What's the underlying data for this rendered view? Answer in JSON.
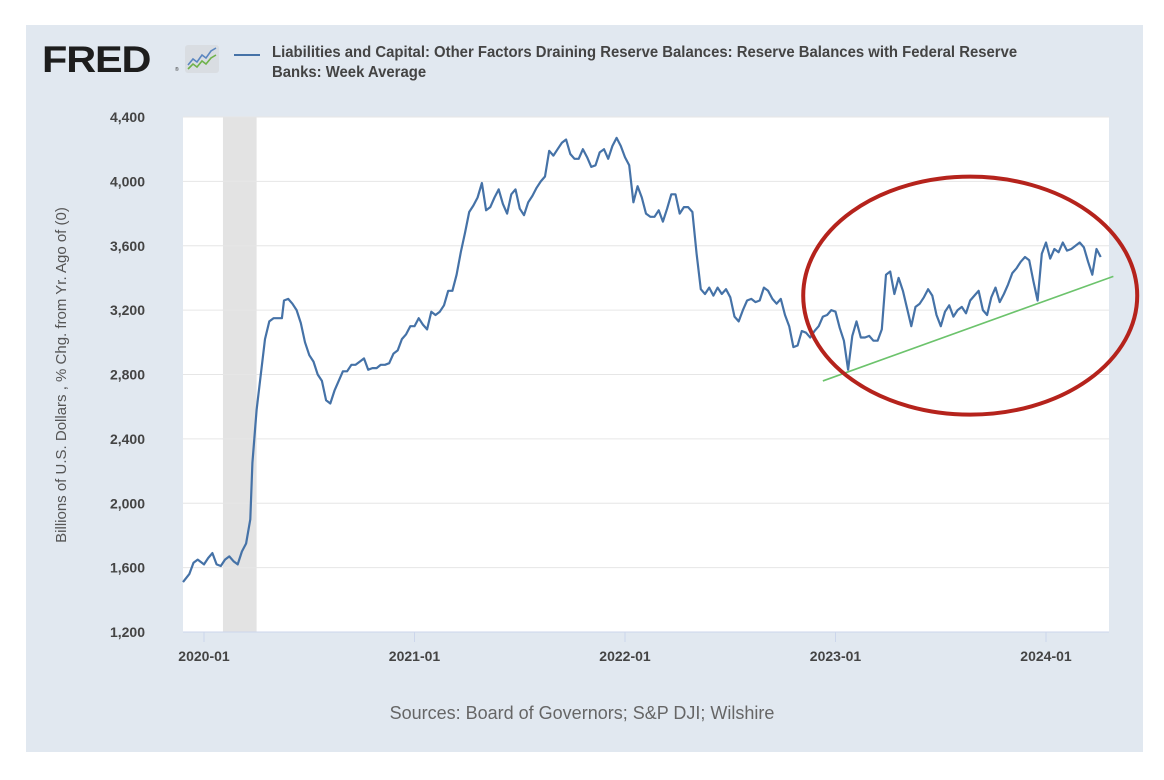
{
  "logo": {
    "text": "FRED",
    "reg_mark": "®",
    "icon": "fred-chart-icon"
  },
  "legend": {
    "series_color": "#4572a7"
  },
  "sources_text": "Sources: Board of Governors; S&P DJI; Wilshire",
  "chart_data": {
    "type": "line",
    "title": "Liabilities and Capital: Other Factors Draining Reserve Balances: Reserve Balances with Federal Reserve Banks: Week Average",
    "xlabel": "",
    "ylabel": "Billions of U.S. Dollars , % Chg. from Yr. Ago of (0)",
    "ylim": [
      1200,
      4400
    ],
    "yticks": [
      1200,
      1600,
      2000,
      2400,
      2800,
      3200,
      3600,
      4000,
      4400
    ],
    "ytick_labels": [
      "1,200",
      "1,600",
      "2,000",
      "2,400",
      "2,800",
      "3,200",
      "3,600",
      "4,000",
      "4,400"
    ],
    "xlim": [
      2019.9,
      2024.3
    ],
    "xticks": [
      2020.0,
      2021.0,
      2022.0,
      2023.0,
      2024.0
    ],
    "xtick_labels": [
      "2020-01",
      "2021-01",
      "2022-01",
      "2023-01",
      "2024-01"
    ],
    "grid": true,
    "legend_position": "top",
    "recession_shading": [
      [
        2020.09,
        2020.25
      ]
    ],
    "series": [
      {
        "name": "Reserve Balances with Federal Reserve Banks: Week Average",
        "color": "#4572a7",
        "x": [
          2019.9,
          2019.93,
          2019.95,
          2019.97,
          2020.0,
          2020.02,
          2020.04,
          2020.06,
          2020.08,
          2020.1,
          2020.12,
          2020.14,
          2020.16,
          2020.18,
          2020.2,
          2020.22,
          2020.23,
          2020.25,
          2020.27,
          2020.29,
          2020.31,
          2020.33,
          2020.35,
          2020.37,
          2020.38,
          2020.4,
          2020.42,
          2020.44,
          2020.46,
          2020.48,
          2020.5,
          2020.52,
          2020.54,
          2020.56,
          2020.58,
          2020.6,
          2020.62,
          2020.64,
          2020.66,
          2020.68,
          2020.7,
          2020.72,
          2020.74,
          2020.76,
          2020.78,
          2020.8,
          2020.82,
          2020.84,
          2020.86,
          2020.88,
          2020.9,
          2020.92,
          2020.94,
          2020.96,
          2020.98,
          2021.0,
          2021.02,
          2021.04,
          2021.06,
          2021.08,
          2021.1,
          2021.12,
          2021.14,
          2021.16,
          2021.18,
          2021.2,
          2021.22,
          2021.24,
          2021.26,
          2021.28,
          2021.3,
          2021.32,
          2021.34,
          2021.36,
          2021.38,
          2021.4,
          2021.42,
          2021.44,
          2021.46,
          2021.48,
          2021.5,
          2021.52,
          2021.54,
          2021.56,
          2021.58,
          2021.6,
          2021.62,
          2021.64,
          2021.66,
          2021.68,
          2021.7,
          2021.72,
          2021.74,
          2021.76,
          2021.78,
          2021.8,
          2021.82,
          2021.84,
          2021.86,
          2021.88,
          2021.9,
          2021.92,
          2021.94,
          2021.96,
          2021.98,
          2022.0,
          2022.02,
          2022.04,
          2022.06,
          2022.08,
          2022.1,
          2022.12,
          2022.14,
          2022.16,
          2022.18,
          2022.2,
          2022.22,
          2022.24,
          2022.26,
          2022.28,
          2022.3,
          2022.32,
          2022.34,
          2022.36,
          2022.38,
          2022.4,
          2022.42,
          2022.44,
          2022.46,
          2022.48,
          2022.5,
          2022.52,
          2022.54,
          2022.56,
          2022.58,
          2022.6,
          2022.62,
          2022.64,
          2022.66,
          2022.68,
          2022.7,
          2022.72,
          2022.74,
          2022.76,
          2022.78,
          2022.8,
          2022.82,
          2022.84,
          2022.86,
          2022.88,
          2022.9,
          2022.92,
          2022.94,
          2022.96,
          2022.98,
          2023.0,
          2023.02,
          2023.04,
          2023.06,
          2023.08,
          2023.1,
          2023.12,
          2023.14,
          2023.16,
          2023.18,
          2023.2,
          2023.22,
          2023.24,
          2023.26,
          2023.28,
          2023.3,
          2023.32,
          2023.34,
          2023.36,
          2023.38,
          2023.4,
          2023.42,
          2023.44,
          2023.46,
          2023.48,
          2023.5,
          2023.52,
          2023.54,
          2023.56,
          2023.58,
          2023.6,
          2023.62,
          2023.64,
          2023.66,
          2023.68,
          2023.7,
          2023.72,
          2023.74,
          2023.76,
          2023.78,
          2023.8,
          2023.82,
          2023.84,
          2023.86,
          2023.88,
          2023.9,
          2023.92,
          2023.94,
          2023.96,
          2023.98,
          2024.0,
          2024.02,
          2024.04,
          2024.06,
          2024.08,
          2024.1,
          2024.12,
          2024.14,
          2024.16,
          2024.18,
          2024.2,
          2024.22,
          2024.24,
          2024.26
        ],
        "values": [
          1510,
          1560,
          1630,
          1650,
          1620,
          1660,
          1690,
          1620,
          1610,
          1650,
          1670,
          1640,
          1620,
          1700,
          1750,
          1900,
          2250,
          2580,
          2800,
          3020,
          3130,
          3150,
          3150,
          3150,
          3260,
          3270,
          3240,
          3200,
          3120,
          3000,
          2920,
          2880,
          2800,
          2760,
          2640,
          2620,
          2700,
          2760,
          2820,
          2820,
          2860,
          2860,
          2880,
          2900,
          2830,
          2840,
          2840,
          2860,
          2860,
          2870,
          2930,
          2950,
          3020,
          3050,
          3100,
          3100,
          3150,
          3110,
          3080,
          3190,
          3170,
          3190,
          3230,
          3320,
          3320,
          3420,
          3560,
          3680,
          3810,
          3850,
          3900,
          3990,
          3820,
          3840,
          3900,
          3950,
          3860,
          3800,
          3920,
          3950,
          3830,
          3790,
          3870,
          3910,
          3960,
          4000,
          4030,
          4190,
          4160,
          4200,
          4240,
          4260,
          4170,
          4140,
          4140,
          4200,
          4150,
          4090,
          4100,
          4180,
          4200,
          4140,
          4220,
          4270,
          4220,
          4150,
          4100,
          3870,
          3970,
          3900,
          3800,
          3780,
          3780,
          3820,
          3750,
          3830,
          3920,
          3920,
          3800,
          3840,
          3840,
          3810,
          3550,
          3330,
          3300,
          3340,
          3290,
          3340,
          3300,
          3330,
          3280,
          3160,
          3130,
          3200,
          3260,
          3270,
          3250,
          3260,
          3340,
          3320,
          3270,
          3240,
          3270,
          3170,
          3100,
          2970,
          2980,
          3070,
          3060,
          3030,
          3070,
          3100,
          3160,
          3170,
          3200,
          3190,
          3090,
          3010,
          2830,
          3040,
          3130,
          3030,
          3030,
          3040,
          3010,
          3010,
          3080,
          3420,
          3440,
          3300,
          3400,
          3320,
          3210,
          3100,
          3220,
          3240,
          3280,
          3330,
          3290,
          3170,
          3100,
          3190,
          3230,
          3160,
          3200,
          3220,
          3180,
          3260,
          3290,
          3320,
          3200,
          3170,
          3280,
          3340,
          3250,
          3300,
          3360,
          3430,
          3460,
          3500,
          3530,
          3510,
          3380,
          3260,
          3550,
          3620,
          3520,
          3580,
          3560,
          3620,
          3570,
          3580,
          3600,
          3620,
          3590,
          3500,
          3420,
          3580,
          3530
        ]
      }
    ],
    "annotations": [
      {
        "type": "trend_line",
        "color": "#6cc36c",
        "from": [
          2022.94,
          2760
        ],
        "to": [
          2024.32,
          3410
        ]
      },
      {
        "type": "ellipse",
        "color": "#b5231c",
        "center": [
          2023.64,
          3290
        ],
        "note": "highlight of 2023-2024 uptrend"
      }
    ]
  }
}
